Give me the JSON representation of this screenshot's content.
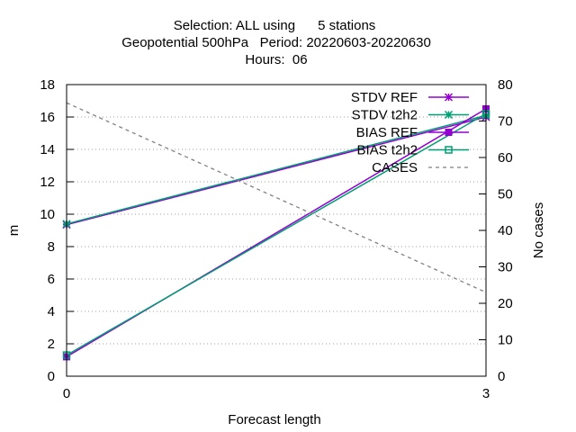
{
  "title": {
    "line1": "Selection: ALL using      5 stations",
    "line2": "Geopotential 500hPa   Period: 20220603-20220630",
    "line3": "Hours:  06"
  },
  "chart_data": {
    "type": "line",
    "x": [
      0,
      3
    ],
    "xlabel": "Forecast length",
    "ylabel": "m",
    "y2label": "No cases",
    "xlim": [
      0,
      3
    ],
    "ylim": [
      0,
      18
    ],
    "y2lim": [
      0,
      80
    ],
    "xticks": [
      "0",
      "3"
    ],
    "yticks": [
      "0",
      "2",
      "4",
      "6",
      "8",
      "10",
      "12",
      "14",
      "16",
      "18"
    ],
    "y2ticks": [
      "0",
      "10",
      "20",
      "30",
      "40",
      "50",
      "60",
      "70",
      "80"
    ],
    "grid": true,
    "legend_position": "top-right",
    "series": [
      {
        "name": "STDV REF",
        "values": [
          9.35,
          16.0
        ],
        "axis": "y1",
        "color": "#9400d3",
        "marker": "star",
        "dash": false
      },
      {
        "name": "STDV t2h2",
        "values": [
          9.4,
          16.1
        ],
        "axis": "y1",
        "color": "#009e73",
        "marker": "star",
        "dash": false
      },
      {
        "name": "BIAS REF",
        "values": [
          1.2,
          16.5
        ],
        "axis": "y1",
        "color": "#9400d3",
        "marker": "square",
        "dash": false
      },
      {
        "name": "BIAS t2h2",
        "values": [
          1.3,
          16.2
        ],
        "axis": "y1",
        "color": "#009e73",
        "marker": "square-hollow",
        "dash": false
      },
      {
        "name": "CASES",
        "values": [
          75,
          23
        ],
        "axis": "y2",
        "color": "#808080",
        "marker": "none",
        "dash": true
      }
    ]
  }
}
